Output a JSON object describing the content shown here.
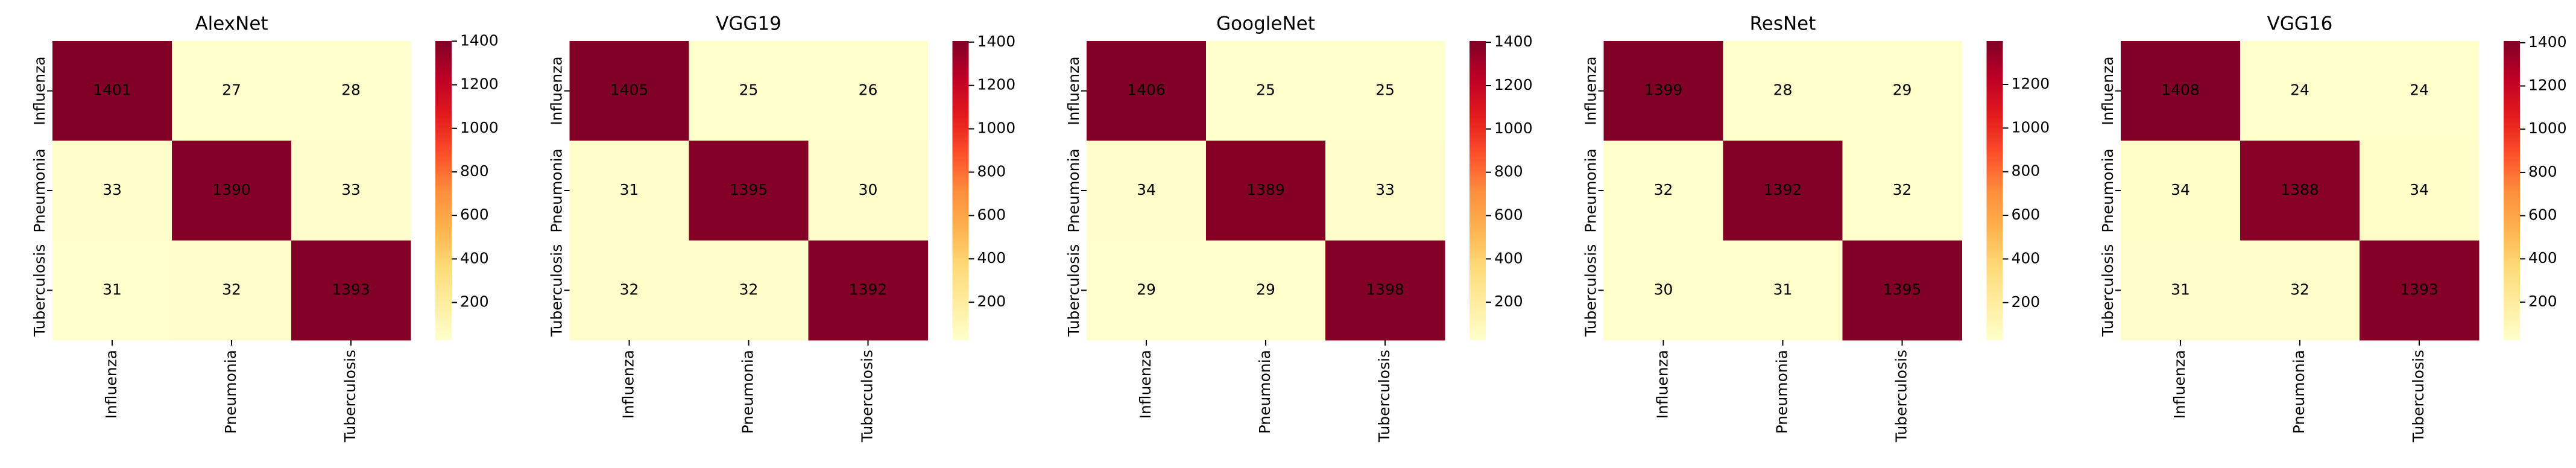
{
  "chart_data": [
    {
      "type": "heatmap",
      "title": "AlexNet",
      "cmap": "YlOrRd",
      "x_categories": [
        "Influenza",
        "Pneumonia",
        "Tuberculosis"
      ],
      "y_categories": [
        "Influenza",
        "Pneumonia",
        "Tuberculosis"
      ],
      "values": [
        [
          1401,
          27,
          28
        ],
        [
          33,
          1390,
          33
        ],
        [
          31,
          32,
          1393
        ]
      ],
      "zlim": [
        27,
        1401
      ],
      "zticks": [
        200,
        400,
        600,
        800,
        1000,
        1200,
        1400
      ]
    },
    {
      "type": "heatmap",
      "title": "VGG19",
      "cmap": "YlOrRd",
      "x_categories": [
        "Influenza",
        "Pneumonia",
        "Tuberculosis"
      ],
      "y_categories": [
        "Influenza",
        "Pneumonia",
        "Tuberculosis"
      ],
      "values": [
        [
          1405,
          25,
          26
        ],
        [
          31,
          1395,
          30
        ],
        [
          32,
          32,
          1392
        ]
      ],
      "zlim": [
        25,
        1405
      ],
      "zticks": [
        200,
        400,
        600,
        800,
        1000,
        1200,
        1400
      ]
    },
    {
      "type": "heatmap",
      "title": "GoogleNet",
      "cmap": "YlOrRd",
      "x_categories": [
        "Influenza",
        "Pneumonia",
        "Tuberculosis"
      ],
      "y_categories": [
        "Influenza",
        "Pneumonia",
        "Tuberculosis"
      ],
      "values": [
        [
          1406,
          25,
          25
        ],
        [
          34,
          1389,
          33
        ],
        [
          29,
          29,
          1398
        ]
      ],
      "zlim": [
        25,
        1406
      ],
      "zticks": [
        200,
        400,
        600,
        800,
        1000,
        1200,
        1400
      ]
    },
    {
      "type": "heatmap",
      "title": "ResNet",
      "cmap": "YlOrRd",
      "x_categories": [
        "Influenza",
        "Pneumonia",
        "Tuberculosis"
      ],
      "y_categories": [
        "Influenza",
        "Pneumonia",
        "Tuberculosis"
      ],
      "values": [
        [
          1399,
          28,
          29
        ],
        [
          32,
          1392,
          32
        ],
        [
          30,
          31,
          1395
        ]
      ],
      "zlim": [
        28,
        1399
      ],
      "zticks": [
        200,
        400,
        600,
        800,
        1000,
        1200
      ]
    },
    {
      "type": "heatmap",
      "title": "VGG16",
      "cmap": "YlOrRd",
      "x_categories": [
        "Influenza",
        "Pneumonia",
        "Tuberculosis"
      ],
      "y_categories": [
        "Influenza",
        "Pneumonia",
        "Tuberculosis"
      ],
      "values": [
        [
          1408,
          24,
          24
        ],
        [
          34,
          1388,
          34
        ],
        [
          31,
          32,
          1393
        ]
      ],
      "zlim": [
        24,
        1408
      ],
      "zticks": [
        200,
        400,
        600,
        800,
        1000,
        1200,
        1400
      ]
    }
  ]
}
